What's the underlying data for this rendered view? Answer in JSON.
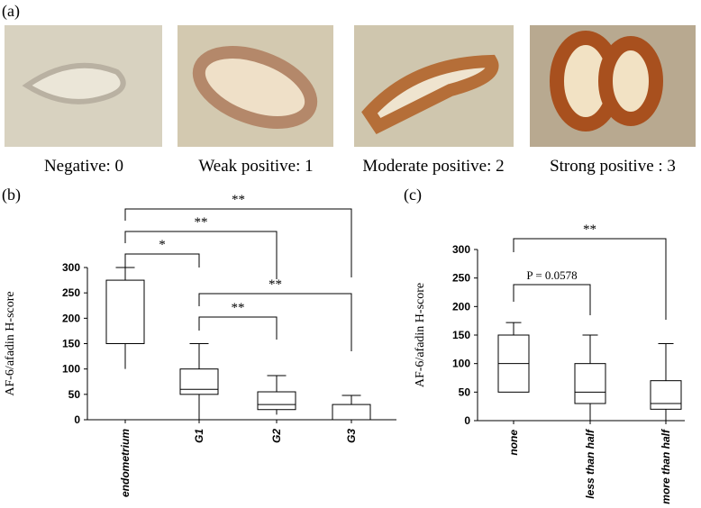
{
  "panel_labels": [
    "(a)",
    "(b)",
    "(c)"
  ],
  "images": [
    {
      "caption": "Negative: 0"
    },
    {
      "caption": "Weak positive: 1"
    },
    {
      "caption": "Moderate positive: 2"
    },
    {
      "caption": "Strong positive : 3"
    }
  ],
  "chart_data": [
    {
      "type": "box",
      "ylabel": "AF-6/afadin H-score",
      "categories": [
        "endometrium",
        "G1",
        "G2",
        "G3"
      ],
      "boxes": [
        {
          "min": 100,
          "q1": 150,
          "median": 150,
          "q3": 275,
          "max": 300
        },
        {
          "min": 0,
          "q1": 50,
          "median": 60,
          "q3": 100,
          "max": 150
        },
        {
          "min": 10,
          "q1": 20,
          "median": 30,
          "q3": 55,
          "max": 87
        },
        {
          "min": 0,
          "q1": 0,
          "median": 0,
          "q3": 30,
          "max": 48
        }
      ],
      "ylim": [
        0,
        300
      ],
      "yticks": [
        0,
        50,
        100,
        150,
        200,
        250,
        300
      ],
      "significance": [
        {
          "pair": [
            0,
            1
          ],
          "label": "*"
        },
        {
          "pair": [
            0,
            2
          ],
          "label": "**"
        },
        {
          "pair": [
            0,
            3
          ],
          "label": "**"
        },
        {
          "pair": [
            1,
            3
          ],
          "label": "**"
        },
        {
          "pair": [
            1,
            2
          ],
          "label": "**"
        }
      ]
    },
    {
      "type": "box",
      "ylabel": "AF-6/afadin H-score",
      "categories": [
        "none",
        "less than half",
        "more than half"
      ],
      "boxes": [
        {
          "min": 50,
          "q1": 50,
          "median": 100,
          "q3": 150,
          "max": 172
        },
        {
          "min": 0,
          "q1": 30,
          "median": 50,
          "q3": 100,
          "max": 150
        },
        {
          "min": 0,
          "q1": 20,
          "median": 30,
          "q3": 70,
          "max": 135
        }
      ],
      "ylim": [
        0,
        300
      ],
      "yticks": [
        0,
        50,
        100,
        150,
        200,
        250,
        300
      ],
      "significance": [
        {
          "pair": [
            0,
            1
          ],
          "label": "P = 0.0578"
        },
        {
          "pair": [
            0,
            2
          ],
          "label": "**"
        }
      ]
    }
  ]
}
